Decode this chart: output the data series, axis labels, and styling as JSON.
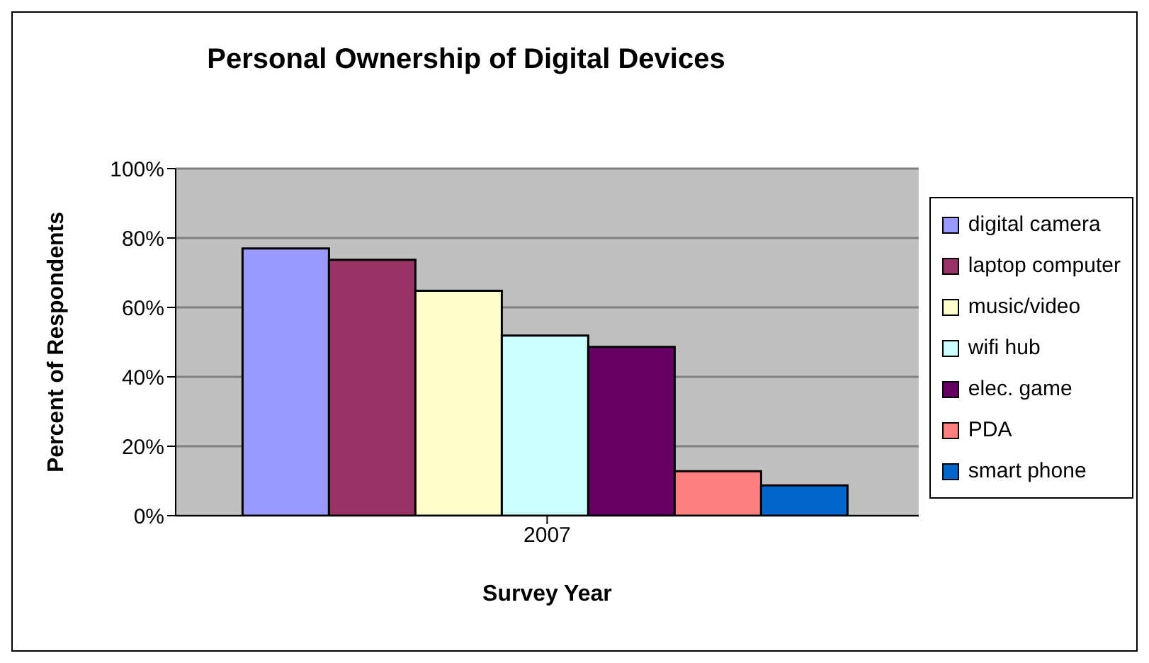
{
  "chart_data": {
    "type": "bar",
    "title": "Personal Ownership of Digital Devices",
    "xlabel": "Survey Year",
    "ylabel": "Percent of Respondents",
    "categories": [
      "2007"
    ],
    "series": [
      {
        "name": "digital camera",
        "color": "#9999ff",
        "values": [
          77
        ]
      },
      {
        "name": "laptop computer",
        "color": "#993366",
        "values": [
          73.7
        ]
      },
      {
        "name": "music/video",
        "color": "#ffffcc",
        "values": [
          64.8
        ]
      },
      {
        "name": "wifi hub",
        "color": "#ccffff",
        "values": [
          51.9
        ]
      },
      {
        "name": "elec. game",
        "color": "#660066",
        "values": [
          48.6
        ]
      },
      {
        "name": "PDA",
        "color": "#ff8080",
        "values": [
          12.8
        ]
      },
      {
        "name": "smart phone",
        "color": "#0066cc",
        "values": [
          8.7
        ]
      }
    ],
    "ylim": [
      0,
      100
    ],
    "yticks": [
      {
        "value": 0,
        "label": "0%"
      },
      {
        "value": 20,
        "label": "20%"
      },
      {
        "value": 40,
        "label": "40%"
      },
      {
        "value": 60,
        "label": "60%"
      },
      {
        "value": 80,
        "label": "80%"
      },
      {
        "value": 100,
        "label": "100%"
      }
    ],
    "grid": "y",
    "legend": "right"
  }
}
